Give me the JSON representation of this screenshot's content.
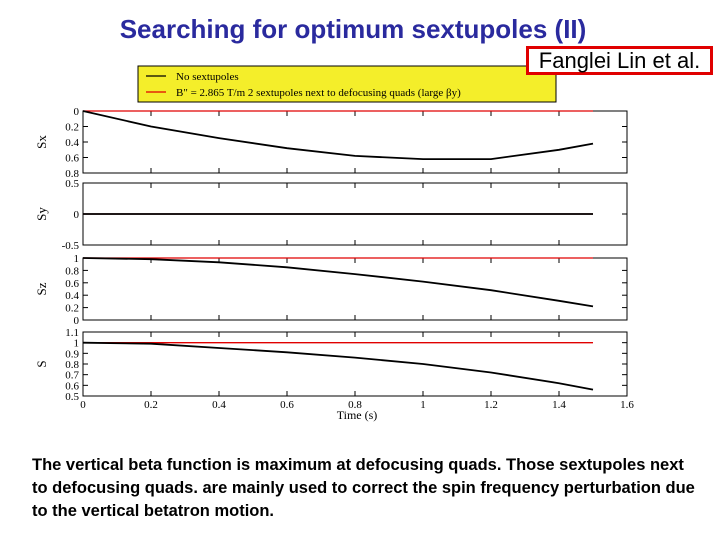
{
  "slide": {
    "title": "Searching for optimum sextupoles (II)",
    "credit": "Fanglei Lin et al.",
    "caption": "The vertical beta function is maximum at defocusing quads. Those sextupoles next to defocusing quads. are mainly used to correct the spin frequency perturbation due to the vertical betatron motion."
  },
  "colors": {
    "title": "#2a2a9e",
    "legend_bg": "#f4ee2a",
    "series_black": "#000000",
    "series_red": "#e00000",
    "credit_border": "#e00000"
  },
  "chart_data": {
    "type": "line",
    "xlabel": "Time (s)",
    "xlim": [
      0,
      1.6
    ],
    "x_ticks": [
      0,
      0.2,
      0.4,
      0.6,
      0.8,
      1,
      1.2,
      1.4,
      1.6
    ],
    "x_tick_labels": [
      "0",
      "0.2",
      "0.4",
      "0.6",
      "0.8",
      "1",
      "1.2",
      "1.4",
      "1.6"
    ],
    "legend": {
      "placement": "top",
      "entries": [
        {
          "label": "No sextupoles",
          "color": "#000000"
        },
        {
          "label": "B\" = 2.865 T/m 2 sextupoles next to defocusing quads  (large βy)",
          "color": "#e00000"
        }
      ]
    },
    "panels": [
      {
        "ylabel": "Sx",
        "ylim": [
          0,
          0.8
        ],
        "inverted": true,
        "y_ticks": [
          0,
          0.2,
          0.4,
          0.6,
          0.8
        ],
        "y_tick_labels": [
          "0",
          "0.2",
          "0.4",
          "0.6",
          "0.8"
        ],
        "series": [
          {
            "x": [
              0,
              0.2,
              0.4,
              0.6,
              0.8,
              1.0,
              1.2,
              1.4,
              1.5
            ],
            "y": [
              0.0,
              0.2,
              0.35,
              0.48,
              0.58,
              0.62,
              0.62,
              0.5,
              0.42
            ]
          },
          {
            "x": [
              0,
              1.5
            ],
            "y": [
              0.0,
              0.0
            ]
          }
        ]
      },
      {
        "ylabel": "Sy",
        "ylim": [
          -0.5,
          0.5
        ],
        "inverted": false,
        "y_ticks": [
          0.5,
          0,
          -0.5
        ],
        "y_tick_labels": [
          "0.5",
          "0",
          "-0.5"
        ],
        "series": [
          {
            "x": [
              0,
              1.5
            ],
            "y": [
              0.0,
              0.0
            ]
          },
          {
            "x": [
              0,
              1.5
            ],
            "y": [
              0.0,
              0.0
            ]
          }
        ]
      },
      {
        "ylabel": "Sz",
        "ylim": [
          0,
          1
        ],
        "inverted": false,
        "y_ticks": [
          1,
          0.8,
          0.6,
          0.4,
          0.2,
          0
        ],
        "y_tick_labels": [
          "1",
          "0.8",
          "0.6",
          "0.4",
          "0.2",
          "0"
        ],
        "series": [
          {
            "x": [
              0,
              0.2,
              0.4,
              0.6,
              0.8,
              1.0,
              1.2,
              1.4,
              1.5
            ],
            "y": [
              1.0,
              0.98,
              0.93,
              0.85,
              0.74,
              0.62,
              0.48,
              0.31,
              0.22
            ]
          },
          {
            "x": [
              0,
              1.5
            ],
            "y": [
              1.0,
              1.0
            ]
          }
        ]
      },
      {
        "ylabel": "S",
        "ylim": [
          0.5,
          1.1
        ],
        "inverted": false,
        "y_ticks": [
          1.1,
          1,
          0.9,
          0.8,
          0.7,
          0.6,
          0.5
        ],
        "y_tick_labels": [
          "1.1",
          "1",
          "0.9",
          "0.8",
          "0.7",
          "0.6",
          "0.5"
        ],
        "series": [
          {
            "x": [
              0,
              0.2,
              0.4,
              0.6,
              0.8,
              1.0,
              1.2,
              1.4,
              1.5
            ],
            "y": [
              1.0,
              0.99,
              0.95,
              0.91,
              0.86,
              0.8,
              0.72,
              0.62,
              0.56
            ]
          },
          {
            "x": [
              0,
              1.5
            ],
            "y": [
              1.0,
              1.0
            ]
          }
        ]
      }
    ]
  }
}
